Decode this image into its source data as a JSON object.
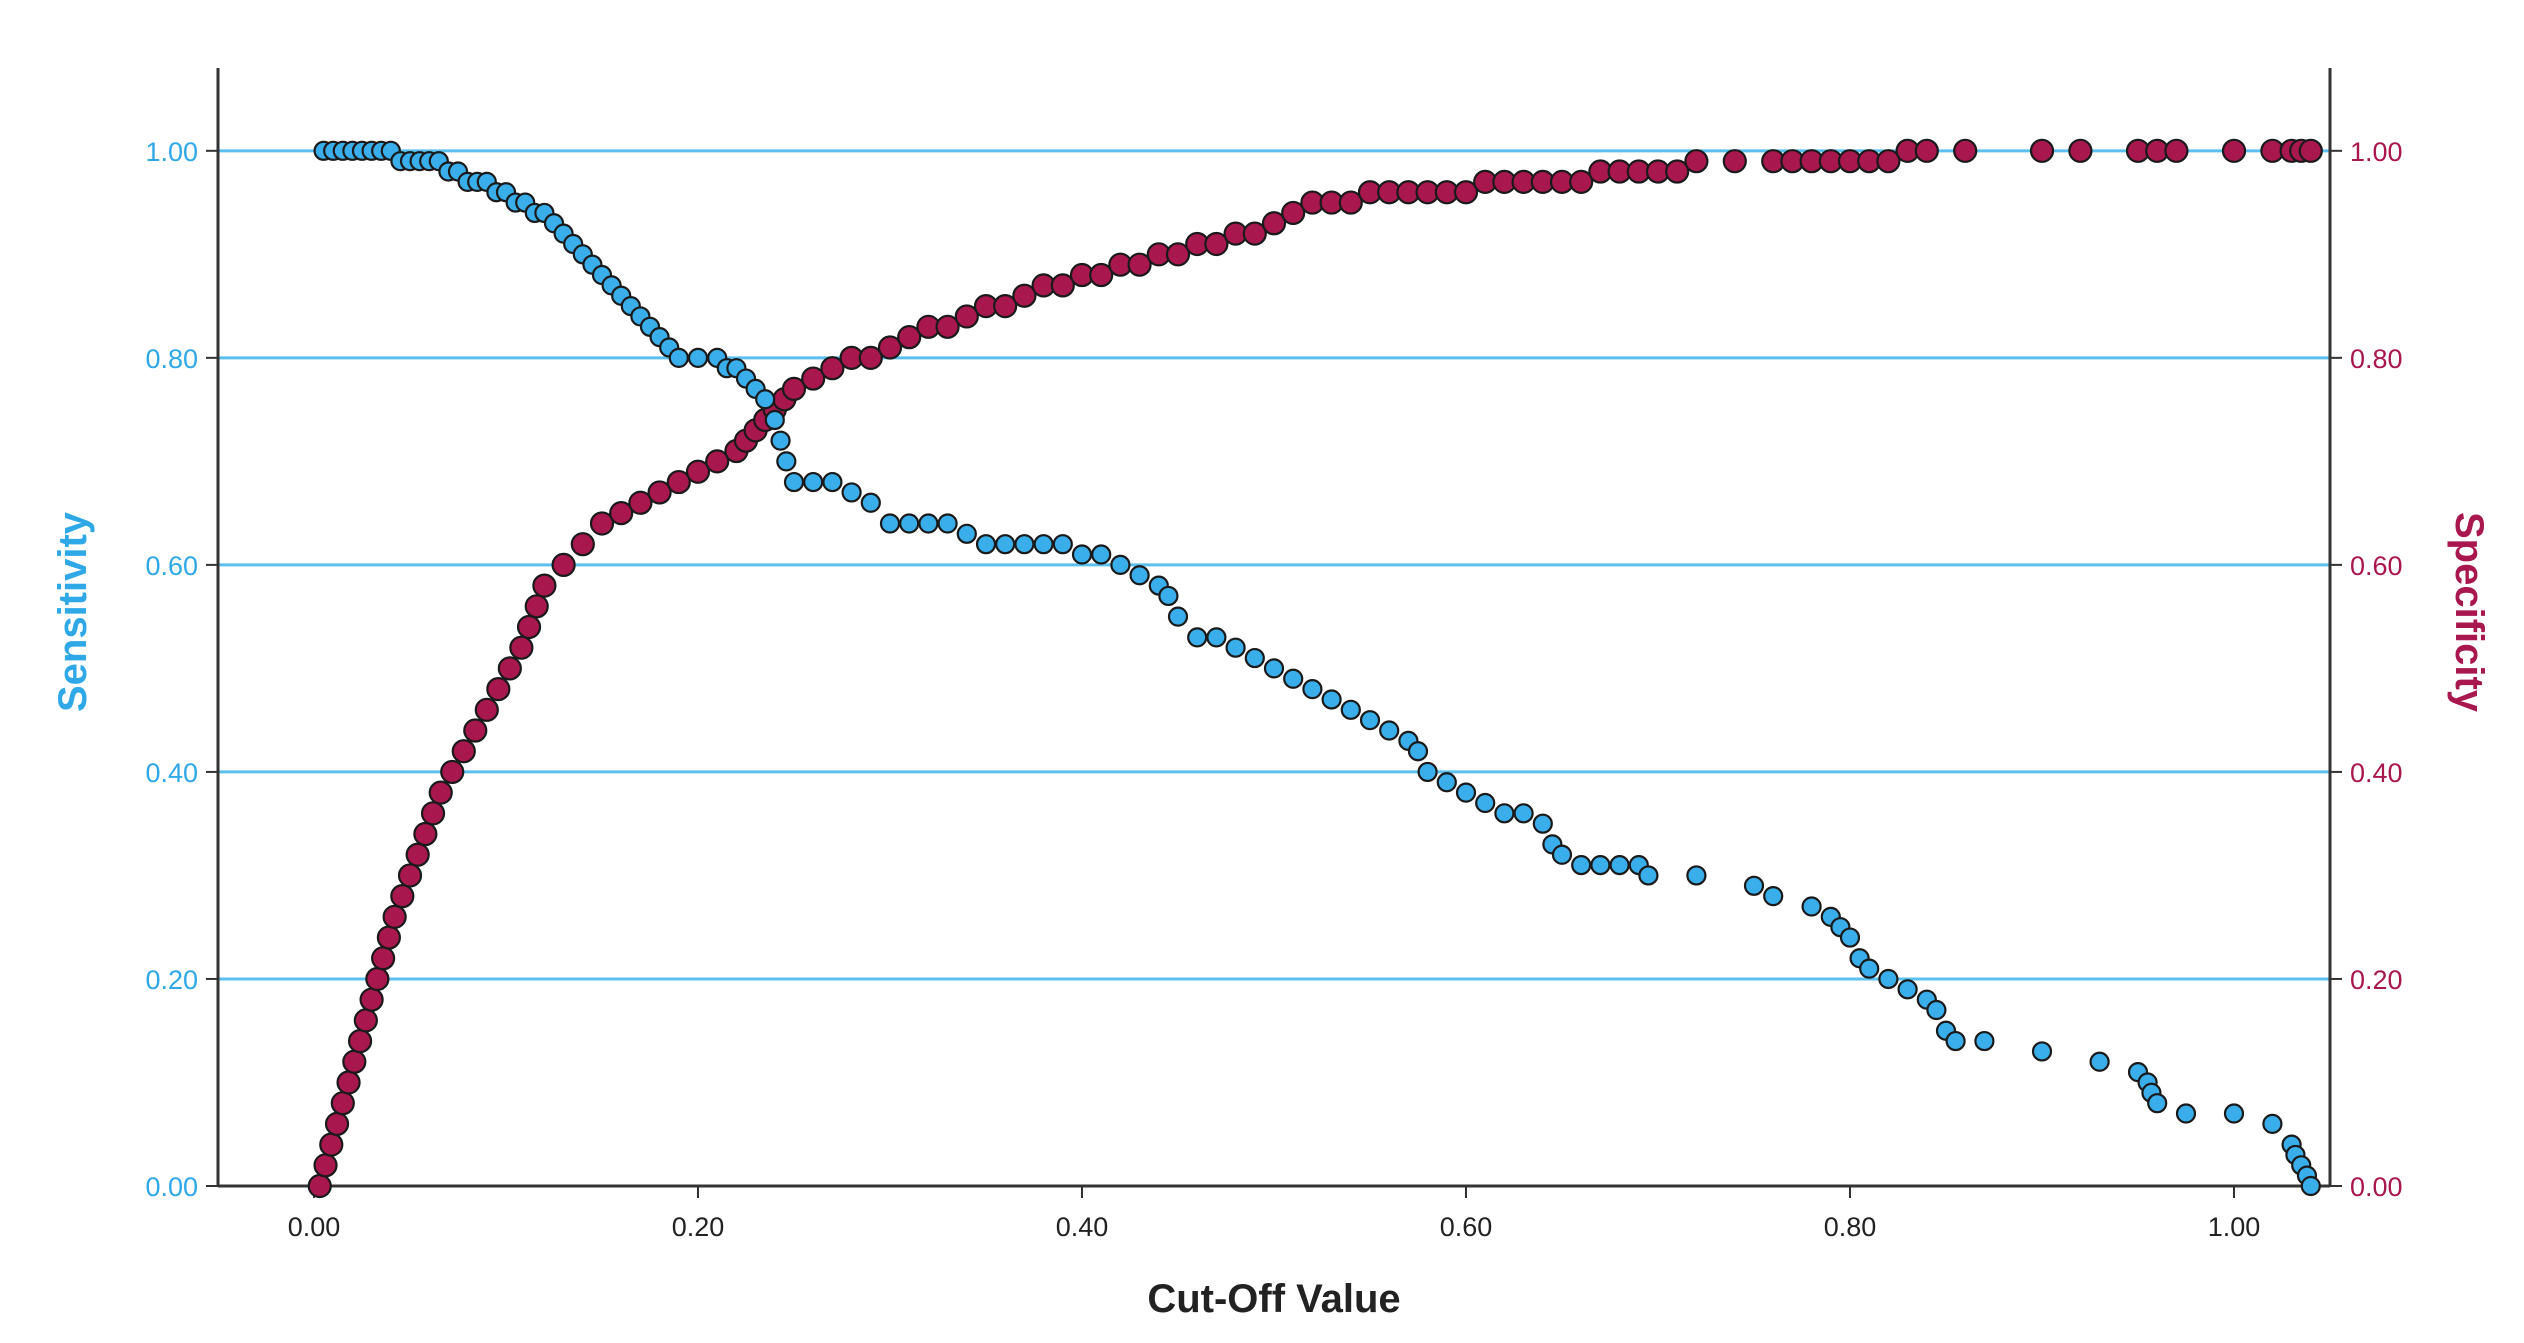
{
  "chart_data": {
    "type": "scatter",
    "title": "",
    "xlabel": "Cut-Off Value",
    "ylabel_left": "Sensitivity",
    "ylabel_right": "Specificity",
    "xlim": [
      -0.05,
      1.05
    ],
    "ylim": [
      0,
      1.08
    ],
    "grid": "horizontal",
    "x_ticks": [
      "0.00",
      "0.20",
      "0.40",
      "0.60",
      "0.80",
      "1.00"
    ],
    "y_ticks_left": [
      "0.00",
      "0.20",
      "0.40",
      "0.60",
      "0.80",
      "1.00"
    ],
    "y_ticks_right": [
      "0.00",
      "0.20",
      "0.40",
      "0.60",
      "0.80",
      "1.00"
    ],
    "colors": {
      "sensitivity": "#3aaeea",
      "specificity": "#a8174e",
      "grid": "#5cc0ee",
      "axis": "#333333",
      "marker_edge": "#1a1a1a"
    },
    "series": [
      {
        "name": "Sensitivity",
        "axis": "left",
        "points": [
          [
            0.005,
            1.0
          ],
          [
            0.01,
            1.0
          ],
          [
            0.015,
            1.0
          ],
          [
            0.02,
            1.0
          ],
          [
            0.025,
            1.0
          ],
          [
            0.03,
            1.0
          ],
          [
            0.035,
            1.0
          ],
          [
            0.04,
            1.0
          ],
          [
            0.045,
            0.99
          ],
          [
            0.05,
            0.99
          ],
          [
            0.055,
            0.99
          ],
          [
            0.06,
            0.99
          ],
          [
            0.065,
            0.99
          ],
          [
            0.07,
            0.98
          ],
          [
            0.075,
            0.98
          ],
          [
            0.08,
            0.97
          ],
          [
            0.085,
            0.97
          ],
          [
            0.09,
            0.97
          ],
          [
            0.095,
            0.96
          ],
          [
            0.1,
            0.96
          ],
          [
            0.105,
            0.95
          ],
          [
            0.11,
            0.95
          ],
          [
            0.115,
            0.94
          ],
          [
            0.12,
            0.94
          ],
          [
            0.125,
            0.93
          ],
          [
            0.13,
            0.92
          ],
          [
            0.135,
            0.91
          ],
          [
            0.14,
            0.9
          ],
          [
            0.145,
            0.89
          ],
          [
            0.15,
            0.88
          ],
          [
            0.155,
            0.87
          ],
          [
            0.16,
            0.86
          ],
          [
            0.165,
            0.85
          ],
          [
            0.17,
            0.84
          ],
          [
            0.175,
            0.83
          ],
          [
            0.18,
            0.82
          ],
          [
            0.185,
            0.81
          ],
          [
            0.19,
            0.8
          ],
          [
            0.2,
            0.8
          ],
          [
            0.21,
            0.8
          ],
          [
            0.215,
            0.79
          ],
          [
            0.22,
            0.79
          ],
          [
            0.225,
            0.78
          ],
          [
            0.23,
            0.77
          ],
          [
            0.235,
            0.76
          ],
          [
            0.24,
            0.74
          ],
          [
            0.243,
            0.72
          ],
          [
            0.246,
            0.7
          ],
          [
            0.25,
            0.68
          ],
          [
            0.26,
            0.68
          ],
          [
            0.27,
            0.68
          ],
          [
            0.28,
            0.67
          ],
          [
            0.29,
            0.66
          ],
          [
            0.3,
            0.64
          ],
          [
            0.31,
            0.64
          ],
          [
            0.32,
            0.64
          ],
          [
            0.33,
            0.64
          ],
          [
            0.34,
            0.63
          ],
          [
            0.35,
            0.62
          ],
          [
            0.36,
            0.62
          ],
          [
            0.37,
            0.62
          ],
          [
            0.38,
            0.62
          ],
          [
            0.39,
            0.62
          ],
          [
            0.4,
            0.61
          ],
          [
            0.41,
            0.61
          ],
          [
            0.42,
            0.6
          ],
          [
            0.43,
            0.59
          ],
          [
            0.44,
            0.58
          ],
          [
            0.445,
            0.57
          ],
          [
            0.45,
            0.55
          ],
          [
            0.46,
            0.53
          ],
          [
            0.47,
            0.53
          ],
          [
            0.48,
            0.52
          ],
          [
            0.49,
            0.51
          ],
          [
            0.5,
            0.5
          ],
          [
            0.51,
            0.49
          ],
          [
            0.52,
            0.48
          ],
          [
            0.53,
            0.47
          ],
          [
            0.54,
            0.46
          ],
          [
            0.55,
            0.45
          ],
          [
            0.56,
            0.44
          ],
          [
            0.57,
            0.43
          ],
          [
            0.575,
            0.42
          ],
          [
            0.58,
            0.4
          ],
          [
            0.59,
            0.39
          ],
          [
            0.6,
            0.38
          ],
          [
            0.61,
            0.37
          ],
          [
            0.62,
            0.36
          ],
          [
            0.63,
            0.36
          ],
          [
            0.64,
            0.35
          ],
          [
            0.645,
            0.33
          ],
          [
            0.65,
            0.32
          ],
          [
            0.66,
            0.31
          ],
          [
            0.67,
            0.31
          ],
          [
            0.68,
            0.31
          ],
          [
            0.69,
            0.31
          ],
          [
            0.695,
            0.3
          ],
          [
            0.72,
            0.3
          ],
          [
            0.75,
            0.29
          ],
          [
            0.76,
            0.28
          ],
          [
            0.78,
            0.27
          ],
          [
            0.79,
            0.26
          ],
          [
            0.795,
            0.25
          ],
          [
            0.8,
            0.24
          ],
          [
            0.805,
            0.22
          ],
          [
            0.81,
            0.21
          ],
          [
            0.82,
            0.2
          ],
          [
            0.83,
            0.19
          ],
          [
            0.84,
            0.18
          ],
          [
            0.845,
            0.17
          ],
          [
            0.85,
            0.15
          ],
          [
            0.855,
            0.14
          ],
          [
            0.87,
            0.14
          ],
          [
            0.9,
            0.13
          ],
          [
            0.93,
            0.12
          ],
          [
            0.95,
            0.11
          ],
          [
            0.955,
            0.1
          ],
          [
            0.957,
            0.09
          ],
          [
            0.96,
            0.08
          ],
          [
            0.975,
            0.07
          ],
          [
            1.0,
            0.07
          ],
          [
            1.02,
            0.06
          ],
          [
            1.03,
            0.04
          ],
          [
            1.032,
            0.03
          ],
          [
            1.035,
            0.02
          ],
          [
            1.038,
            0.01
          ],
          [
            1.04,
            0.0
          ]
        ]
      },
      {
        "name": "Specificity",
        "axis": "right",
        "points": [
          [
            0.003,
            0.0
          ],
          [
            0.006,
            0.02
          ],
          [
            0.009,
            0.04
          ],
          [
            0.012,
            0.06
          ],
          [
            0.015,
            0.08
          ],
          [
            0.018,
            0.1
          ],
          [
            0.021,
            0.12
          ],
          [
            0.024,
            0.14
          ],
          [
            0.027,
            0.16
          ],
          [
            0.03,
            0.18
          ],
          [
            0.033,
            0.2
          ],
          [
            0.036,
            0.22
          ],
          [
            0.039,
            0.24
          ],
          [
            0.042,
            0.26
          ],
          [
            0.046,
            0.28
          ],
          [
            0.05,
            0.3
          ],
          [
            0.054,
            0.32
          ],
          [
            0.058,
            0.34
          ],
          [
            0.062,
            0.36
          ],
          [
            0.066,
            0.38
          ],
          [
            0.072,
            0.4
          ],
          [
            0.078,
            0.42
          ],
          [
            0.084,
            0.44
          ],
          [
            0.09,
            0.46
          ],
          [
            0.096,
            0.48
          ],
          [
            0.102,
            0.5
          ],
          [
            0.108,
            0.52
          ],
          [
            0.112,
            0.54
          ],
          [
            0.116,
            0.56
          ],
          [
            0.12,
            0.58
          ],
          [
            0.13,
            0.6
          ],
          [
            0.14,
            0.62
          ],
          [
            0.15,
            0.64
          ],
          [
            0.16,
            0.65
          ],
          [
            0.17,
            0.66
          ],
          [
            0.18,
            0.67
          ],
          [
            0.19,
            0.68
          ],
          [
            0.2,
            0.69
          ],
          [
            0.21,
            0.7
          ],
          [
            0.22,
            0.71
          ],
          [
            0.225,
            0.72
          ],
          [
            0.23,
            0.73
          ],
          [
            0.235,
            0.74
          ],
          [
            0.24,
            0.75
          ],
          [
            0.245,
            0.76
          ],
          [
            0.25,
            0.77
          ],
          [
            0.26,
            0.78
          ],
          [
            0.27,
            0.79
          ],
          [
            0.28,
            0.8
          ],
          [
            0.29,
            0.8
          ],
          [
            0.3,
            0.81
          ],
          [
            0.31,
            0.82
          ],
          [
            0.32,
            0.83
          ],
          [
            0.33,
            0.83
          ],
          [
            0.34,
            0.84
          ],
          [
            0.35,
            0.85
          ],
          [
            0.36,
            0.85
          ],
          [
            0.37,
            0.86
          ],
          [
            0.38,
            0.87
          ],
          [
            0.39,
            0.87
          ],
          [
            0.4,
            0.88
          ],
          [
            0.41,
            0.88
          ],
          [
            0.42,
            0.89
          ],
          [
            0.43,
            0.89
          ],
          [
            0.44,
            0.9
          ],
          [
            0.45,
            0.9
          ],
          [
            0.46,
            0.91
          ],
          [
            0.47,
            0.91
          ],
          [
            0.48,
            0.92
          ],
          [
            0.49,
            0.92
          ],
          [
            0.5,
            0.93
          ],
          [
            0.51,
            0.94
          ],
          [
            0.52,
            0.95
          ],
          [
            0.53,
            0.95
          ],
          [
            0.54,
            0.95
          ],
          [
            0.55,
            0.96
          ],
          [
            0.56,
            0.96
          ],
          [
            0.57,
            0.96
          ],
          [
            0.58,
            0.96
          ],
          [
            0.59,
            0.96
          ],
          [
            0.6,
            0.96
          ],
          [
            0.61,
            0.97
          ],
          [
            0.62,
            0.97
          ],
          [
            0.63,
            0.97
          ],
          [
            0.64,
            0.97
          ],
          [
            0.65,
            0.97
          ],
          [
            0.66,
            0.97
          ],
          [
            0.67,
            0.98
          ],
          [
            0.68,
            0.98
          ],
          [
            0.69,
            0.98
          ],
          [
            0.7,
            0.98
          ],
          [
            0.71,
            0.98
          ],
          [
            0.72,
            0.99
          ],
          [
            0.74,
            0.99
          ],
          [
            0.76,
            0.99
          ],
          [
            0.77,
            0.99
          ],
          [
            0.78,
            0.99
          ],
          [
            0.79,
            0.99
          ],
          [
            0.8,
            0.99
          ],
          [
            0.81,
            0.99
          ],
          [
            0.82,
            0.99
          ],
          [
            0.83,
            1.0
          ],
          [
            0.84,
            1.0
          ],
          [
            0.86,
            1.0
          ],
          [
            0.9,
            1.0
          ],
          [
            0.92,
            1.0
          ],
          [
            0.95,
            1.0
          ],
          [
            0.96,
            1.0
          ],
          [
            0.97,
            1.0
          ],
          [
            1.0,
            1.0
          ],
          [
            1.02,
            1.0
          ],
          [
            1.03,
            1.0
          ],
          [
            1.035,
            1.0
          ],
          [
            1.04,
            1.0
          ]
        ]
      }
    ]
  }
}
